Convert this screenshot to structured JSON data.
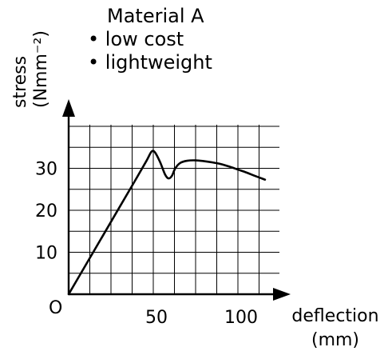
{
  "chart_data": {
    "type": "line",
    "title": "Material A",
    "notes": [
      "• low cost",
      "• lightweight"
    ],
    "ylabel": {
      "name": "stress",
      "unit": "(Nmm⁻²)"
    },
    "xlabel": {
      "name": "deflection",
      "unit": "(mm)"
    },
    "origin_label": "O",
    "xlim": [
      0,
      125
    ],
    "ylim": [
      0,
      42
    ],
    "x_ticks": [
      50,
      100
    ],
    "x_tick_labels": [
      "50",
      "100"
    ],
    "y_ticks": [
      10,
      20,
      30
    ],
    "y_tick_labels": [
      "10",
      "20",
      "30"
    ],
    "grid": true,
    "series": [
      {
        "x": [
          0,
          10,
          20,
          30,
          40,
          46,
          49,
          51,
          54,
          57,
          59,
          61,
          63,
          66,
          70,
          75,
          80,
          85,
          90,
          95,
          100,
          105,
          110,
          116
        ],
        "y": [
          0,
          6.9,
          13.8,
          20.7,
          27.6,
          31.8,
          34.0,
          33.8,
          31.5,
          28.5,
          27.6,
          28.2,
          30.0,
          31.3,
          31.8,
          31.9,
          31.7,
          31.4,
          31.0,
          30.4,
          29.7,
          29.0,
          28.2,
          27.3
        ]
      }
    ]
  }
}
